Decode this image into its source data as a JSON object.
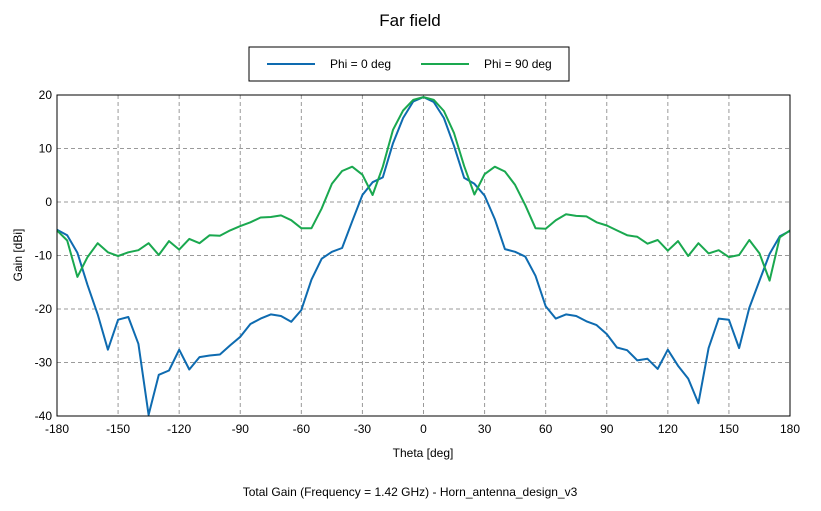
{
  "chart_data": {
    "type": "line",
    "title": "Far field",
    "xlabel": "Theta [deg]",
    "ylabel": "Gain [dBi]",
    "caption": "Total Gain (Frequency = 1.42 GHz) - Horn_antenna_design_v3",
    "xlim": [
      -180,
      180
    ],
    "ylim": [
      -40,
      20
    ],
    "xticks": [
      "-180",
      "-150",
      "-120",
      "-90",
      "-60",
      "-30",
      "0",
      "30",
      "60",
      "90",
      "120",
      "150",
      "180"
    ],
    "yticks": [
      "20",
      "10",
      "0",
      "-10",
      "-20",
      "-30",
      "-40"
    ],
    "grid": true,
    "legend_position": "top-center",
    "x": [
      -180,
      -175,
      -170,
      -165,
      -160,
      -155,
      -150,
      -145,
      -140,
      -135,
      -130,
      -125,
      -120,
      -115,
      -110,
      -105,
      -100,
      -95,
      -90,
      -85,
      -80,
      -75,
      -70,
      -65,
      -60,
      -55,
      -50,
      -45,
      -40,
      -35,
      -30,
      -25,
      -20,
      -15,
      -10,
      -5,
      0,
      5,
      10,
      15,
      20,
      25,
      30,
      35,
      40,
      45,
      50,
      55,
      60,
      65,
      70,
      75,
      80,
      85,
      90,
      95,
      100,
      105,
      110,
      115,
      120,
      125,
      130,
      135,
      140,
      145,
      150,
      155,
      160,
      165,
      170,
      175,
      180
    ],
    "series": [
      {
        "name": "Phi = 0 deg",
        "color": "#0e6bb0",
        "values": [
          -5.2,
          -6.2,
          -9.5,
          -15.5,
          -21,
          -27.6,
          -22,
          -21.5,
          -26.5,
          -39.8,
          -32.3,
          -31.5,
          -27.6,
          -31.3,
          -29,
          -28.7,
          -28.5,
          -26.8,
          -25.2,
          -22.8,
          -21.8,
          -21,
          -21.3,
          -22.4,
          -20.2,
          -14.5,
          -10.6,
          -9.3,
          -8.6,
          -3.6,
          1.3,
          3.7,
          4.6,
          11,
          15.7,
          18.8,
          19.6,
          18.7,
          15.7,
          10.5,
          4.5,
          3.4,
          1.2,
          -3.2,
          -8.8,
          -9.3,
          -10.2,
          -13.8,
          -19.5,
          -21.8,
          -21,
          -21.3,
          -22.3,
          -23,
          -24.7,
          -27.2,
          -27.7,
          -29.6,
          -29.3,
          -31.2,
          -27.6,
          -30.6,
          -33,
          -37.6,
          -27.3,
          -21.8,
          -22,
          -27.3,
          -19.8,
          -14.7,
          -9.7,
          -6.4,
          -5.4
        ]
      },
      {
        "name": "Phi = 90 deg",
        "color": "#1aa84f",
        "values": [
          -5.3,
          -7.2,
          -14,
          -10.3,
          -7.7,
          -9.4,
          -10.1,
          -9.4,
          -9.0,
          -7.7,
          -9.9,
          -7.3,
          -8.9,
          -6.9,
          -7.7,
          -6.2,
          -6.3,
          -5.3,
          -4.5,
          -3.8,
          -2.9,
          -2.8,
          -2.5,
          -3.4,
          -4.9,
          -4.9,
          -1.2,
          3.4,
          5.8,
          6.6,
          5.1,
          1.3,
          6.6,
          13.5,
          17.1,
          19.1,
          19.6,
          19.1,
          17,
          12.9,
          6.7,
          1.4,
          5.2,
          6.6,
          5.7,
          3.2,
          -0.6,
          -4.9,
          -5,
          -3.4,
          -2.3,
          -2.6,
          -2.7,
          -3.8,
          -4.4,
          -5.3,
          -6.2,
          -6.5,
          -7.8,
          -7.1,
          -9.1,
          -7.3,
          -10.1,
          -7.7,
          -9.6,
          -9.0,
          -10.3,
          -9.9,
          -7.1,
          -9.6,
          -14.7,
          -6.6,
          -5.3
        ]
      }
    ]
  }
}
